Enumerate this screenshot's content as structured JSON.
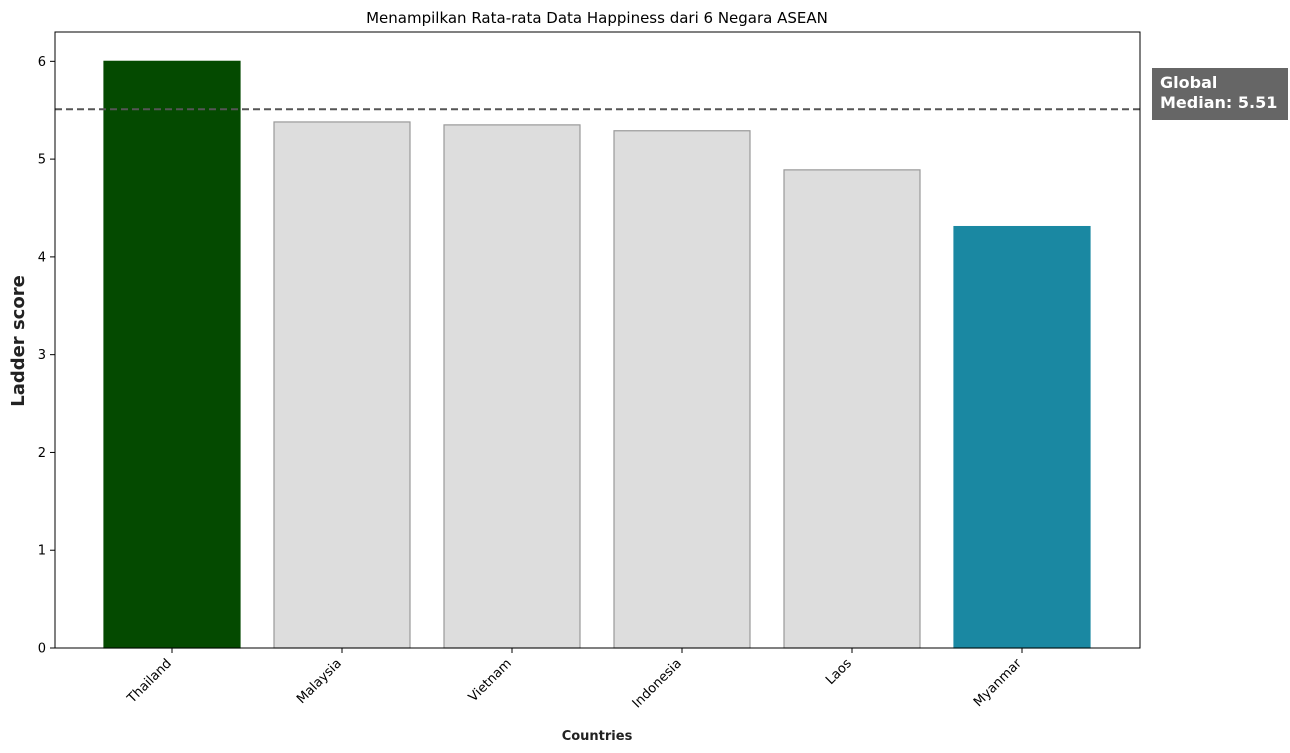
{
  "chart_data": {
    "type": "bar",
    "title": "Menampilkan Rata-rata Data Happiness dari 6 Negara ASEAN",
    "xlabel": "Countries",
    "ylabel": "Ladder score",
    "categories": [
      "Thailand",
      "Malaysia",
      "Vietnam",
      "Indonesia",
      "Laos",
      "Myanmar"
    ],
    "values": [
      6.0,
      5.38,
      5.35,
      5.29,
      4.89,
      4.31
    ],
    "bar_colors": [
      "#044a00",
      "#dddddd",
      "#dddddd",
      "#dddddd",
      "#dddddd",
      "#1a88a2"
    ],
    "bar_edge_colors": [
      "#044a00",
      "#999999",
      "#999999",
      "#999999",
      "#999999",
      "#1a88a2"
    ],
    "ylim": [
      0,
      6.3
    ],
    "yticks": [
      0,
      1,
      2,
      3,
      4,
      5,
      6
    ],
    "grid": false,
    "reference_line": {
      "value": 5.51,
      "style": "dashed",
      "color": "#555555",
      "label_lines": [
        "Global",
        "Median: 5.51"
      ],
      "label_bg": "#666666"
    }
  }
}
